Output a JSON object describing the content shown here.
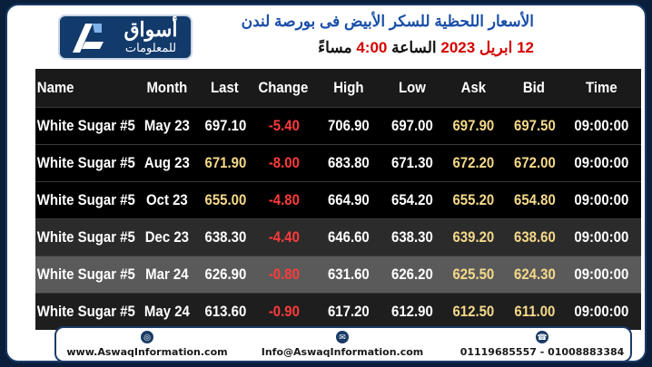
{
  "header": {
    "logo_text_1": "أسواق",
    "logo_text_2": "للمعلومات",
    "title_line_1": "الأسعار اللحظية للسكر الأبيض فى بورصة لندن",
    "title_date": "12 ابريل 2023",
    "title_word": "الساعة",
    "title_time": "4:00",
    "title_suffix": "مساءً"
  },
  "table": {
    "columns": [
      "Name",
      "Month",
      "Last",
      "Change",
      "High",
      "Low",
      "Ask",
      "Bid",
      "Time"
    ],
    "rows": [
      {
        "name": "White Sugar #5",
        "month": "May 23",
        "last": "697.10",
        "change": "-5.40",
        "high": "706.90",
        "low": "697.00",
        "ask": "697.90",
        "bid": "697.50",
        "time": "09:00:00"
      },
      {
        "name": "White Sugar #5",
        "month": "Aug 23",
        "last": "671.90",
        "change": "-8.00",
        "high": "683.80",
        "low": "671.30",
        "ask": "672.20",
        "bid": "672.00",
        "time": "09:00:00"
      },
      {
        "name": "White Sugar #5",
        "month": "Oct 23",
        "last": "655.00",
        "change": "-4.80",
        "high": "664.90",
        "low": "654.20",
        "ask": "655.20",
        "bid": "654.80",
        "time": "09:00:00"
      },
      {
        "name": "White Sugar #5",
        "month": "Dec 23",
        "last": "638.30",
        "change": "-4.40",
        "high": "646.60",
        "low": "638.30",
        "ask": "639.20",
        "bid": "638.60",
        "time": "09:00:00"
      },
      {
        "name": "White Sugar #5",
        "month": "Mar 24",
        "last": "626.90",
        "change": "-0.80",
        "high": "631.60",
        "low": "626.20",
        "ask": "625.50",
        "bid": "624.30",
        "time": "09:00:00"
      },
      {
        "name": "White Sugar #5",
        "month": "May 24",
        "last": "613.60",
        "change": "-0.90",
        "high": "617.20",
        "low": "612.90",
        "ask": "612.50",
        "bid": "611.00",
        "time": "09:00:00"
      }
    ],
    "colors": {
      "default": "#ffffff",
      "highlight": "#f5d98a",
      "negative": "#ff3b3b"
    }
  },
  "footer": {
    "website": "www.AswaqInformation.com",
    "email": "Info@AswaqInformation.com",
    "phones": "01119685557 - 01008883384",
    "web_icon": "globe-icon",
    "email_icon": "envelope-icon",
    "phone_icon": "phone-icon"
  }
}
